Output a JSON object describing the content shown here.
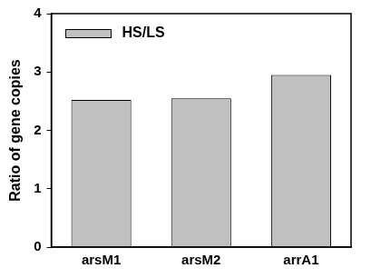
{
  "chart_data": {
    "type": "bar",
    "categories": [
      "arsM1",
      "arsM2",
      "arrA1"
    ],
    "series": [
      {
        "name": "HS/LS",
        "color": "#c0c0c0",
        "values": [
          2.52,
          2.55,
          2.95
        ]
      }
    ],
    "y_label": "Ratio of gene copies",
    "ylim": [
      0,
      4
    ],
    "yticks": [
      0,
      1,
      2,
      3,
      4
    ],
    "grid": false,
    "legend": "upper left"
  }
}
